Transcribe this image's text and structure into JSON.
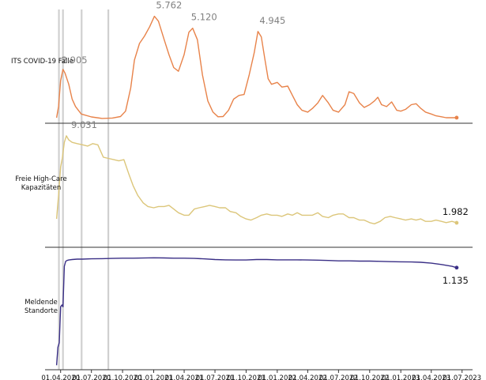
{
  "chart_data": [
    {
      "type": "line",
      "ylabel": "ITS COVID-19 Fälle",
      "color": "#e8834a",
      "series": [
        {
          "x": [
            "2020-03-20",
            "2020-03-26",
            "2020-04-01",
            "2020-04-08",
            "2020-04-14",
            "2020-04-25",
            "2020-05-05",
            "2020-05-15",
            "2020-06-01",
            "2020-07-01",
            "2020-08-01",
            "2020-09-01",
            "2020-09-25",
            "2020-10-10",
            "2020-10-25",
            "2020-11-05",
            "2020-11-20",
            "2020-12-05",
            "2020-12-20",
            "2021-01-03",
            "2021-01-15",
            "2021-02-01",
            "2021-02-15",
            "2021-03-01",
            "2021-03-15",
            "2021-04-01",
            "2021-04-15",
            "2021-04-26",
            "2021-05-10",
            "2021-05-25",
            "2021-06-10",
            "2021-06-25",
            "2021-07-10",
            "2021-07-25",
            "2021-08-10",
            "2021-08-25",
            "2021-09-10",
            "2021-09-25",
            "2021-10-10",
            "2021-10-25",
            "2021-11-05",
            "2021-11-15",
            "2021-11-25",
            "2021-12-05",
            "2021-12-15",
            "2022-01-01",
            "2022-01-15",
            "2022-02-01",
            "2022-02-15",
            "2022-03-01",
            "2022-03-15",
            "2022-04-01",
            "2022-04-15",
            "2022-05-01",
            "2022-05-15",
            "2022-06-01",
            "2022-06-15",
            "2022-07-01",
            "2022-07-20",
            "2022-08-01",
            "2022-08-15",
            "2022-09-01",
            "2022-09-15",
            "2022-10-01",
            "2022-10-15",
            "2022-10-25",
            "2022-11-05",
            "2022-11-20",
            "2022-12-05",
            "2022-12-20",
            "2023-01-01",
            "2023-01-15",
            "2023-02-01",
            "2023-02-15",
            "2023-03-01",
            "2023-03-15",
            "2023-04-01",
            "2023-04-15",
            "2023-05-01",
            "2023-05-15",
            "2023-06-01",
            "2023-06-15"
          ],
          "y": [
            300,
            900,
            2300,
            2905,
            2700,
            2100,
            1300,
            900,
            500,
            340,
            260,
            280,
            360,
            650,
            1900,
            3400,
            4300,
            4700,
            5200,
            5762,
            5500,
            4500,
            3700,
            3000,
            2800,
            3700,
            4900,
            5120,
            4500,
            2600,
            1200,
            600,
            350,
            360,
            700,
            1300,
            1500,
            1550,
            2600,
            3800,
            4945,
            4650,
            3500,
            2400,
            2100,
            2200,
            1950,
            2000,
            1500,
            1000,
            700,
            600,
            800,
            1100,
            1500,
            1100,
            700,
            600,
            1000,
            1700,
            1600,
            1100,
            850,
            1000,
            1200,
            1400,
            1000,
            900,
            1150,
            700,
            650,
            750,
            1000,
            1050,
            800,
            600,
            500,
            400,
            350,
            300,
            300,
            300
          ]
        }
      ],
      "value_labels": [
        "2.905",
        "5.762",
        "5.120",
        "4.945"
      ],
      "label_indices": [
        3,
        19,
        27,
        40
      ],
      "ylim": [
        0,
        6300
      ]
    },
    {
      "type": "line",
      "ylabel": "Freie High-Care Kapazitäten",
      "color": "#dcc67a",
      "series": [
        {
          "x": [
            "2020-03-20",
            "2020-03-26",
            "2020-04-01",
            "2020-04-06",
            "2020-04-12",
            "2020-04-18",
            "2020-04-25",
            "2020-05-05",
            "2020-05-20",
            "2020-06-05",
            "2020-06-20",
            "2020-07-05",
            "2020-07-20",
            "2020-08-05",
            "2020-08-20",
            "2020-09-05",
            "2020-09-20",
            "2020-10-05",
            "2020-10-20",
            "2020-11-01",
            "2020-11-15",
            "2020-12-01",
            "2020-12-15",
            "2021-01-01",
            "2021-01-15",
            "2021-02-01",
            "2021-02-15",
            "2021-03-01",
            "2021-03-15",
            "2021-04-01",
            "2021-04-15",
            "2021-05-01",
            "2021-05-15",
            "2021-06-01",
            "2021-06-15",
            "2021-07-01",
            "2021-07-15",
            "2021-08-01",
            "2021-08-15",
            "2021-09-01",
            "2021-09-15",
            "2021-10-01",
            "2021-10-15",
            "2021-11-01",
            "2021-11-15",
            "2021-12-01",
            "2021-12-15",
            "2022-01-01",
            "2022-01-15",
            "2022-02-01",
            "2022-02-15",
            "2022-03-01",
            "2022-03-15",
            "2022-04-01",
            "2022-04-15",
            "2022-05-01",
            "2022-05-15",
            "2022-06-01",
            "2022-06-15",
            "2022-07-01",
            "2022-07-15",
            "2022-08-01",
            "2022-08-15",
            "2022-09-01",
            "2022-09-15",
            "2022-10-01",
            "2022-10-15",
            "2022-11-01",
            "2022-11-15",
            "2022-12-01",
            "2022-12-15",
            "2023-01-01",
            "2023-01-15",
            "2023-02-01",
            "2023-02-15",
            "2023-03-01",
            "2023-03-15",
            "2023-04-01",
            "2023-04-15",
            "2023-05-01",
            "2023-05-15",
            "2023-06-01",
            "2023-06-15"
          ],
          "y": [
            2300,
            4200,
            6500,
            7200,
            8500,
            9031,
            8700,
            8500,
            8400,
            8300,
            8200,
            8400,
            8300,
            7300,
            7200,
            7100,
            7000,
            7100,
            5900,
            5000,
            4200,
            3600,
            3300,
            3200,
            3300,
            3300,
            3400,
            3100,
            2800,
            2600,
            2600,
            3100,
            3200,
            3300,
            3400,
            3300,
            3200,
            3200,
            2900,
            2800,
            2500,
            2300,
            2200,
            2400,
            2600,
            2700,
            2600,
            2600,
            2500,
            2700,
            2600,
            2800,
            2600,
            2600,
            2600,
            2800,
            2500,
            2400,
            2600,
            2700,
            2700,
            2400,
            2400,
            2200,
            2200,
            2000,
            1900,
            2100,
            2400,
            2500,
            2400,
            2300,
            2200,
            2300,
            2200,
            2300,
            2100,
            2100,
            2200,
            2100,
            2000,
            2100,
            1982
          ]
        }
      ],
      "value_labels": [
        "9.031",
        "1.982"
      ],
      "label_indices": [
        5,
        82
      ],
      "ylim": [
        0,
        9600
      ]
    },
    {
      "type": "line",
      "ylabel": "Meldende Standorte",
      "color": "#3a2f86",
      "series": [
        {
          "x": [
            "2020-03-20",
            "2020-03-24",
            "2020-03-28",
            "2020-04-01",
            "2020-04-05",
            "2020-04-08",
            "2020-04-12",
            "2020-04-16",
            "2020-04-20",
            "2020-04-25",
            "2020-05-05",
            "2020-05-20",
            "2020-06-05",
            "2020-07-01",
            "2020-08-01",
            "2020-09-01",
            "2020-10-01",
            "2020-11-01",
            "2020-12-01",
            "2021-01-01",
            "2021-02-01",
            "2021-03-01",
            "2021-04-01",
            "2021-05-01",
            "2021-06-01",
            "2021-07-01",
            "2021-08-01",
            "2021-09-01",
            "2021-10-01",
            "2021-11-01",
            "2021-12-01",
            "2022-01-01",
            "2022-02-01",
            "2022-03-01",
            "2022-04-01",
            "2022-05-01",
            "2022-06-01",
            "2022-07-01",
            "2022-08-01",
            "2022-09-01",
            "2022-10-01",
            "2022-11-01",
            "2022-12-01",
            "2023-01-01",
            "2023-02-01",
            "2023-03-01",
            "2023-04-01",
            "2023-05-01",
            "2023-06-01",
            "2023-06-15"
          ],
          "y": [
            50,
            250,
            300,
            700,
            720,
            700,
            1150,
            1205,
            1215,
            1220,
            1225,
            1230,
            1230,
            1233,
            1235,
            1238,
            1240,
            1240,
            1242,
            1245,
            1243,
            1240,
            1240,
            1238,
            1232,
            1225,
            1222,
            1220,
            1220,
            1225,
            1225,
            1222,
            1222,
            1222,
            1220,
            1218,
            1215,
            1210,
            1210,
            1208,
            1208,
            1205,
            1202,
            1200,
            1198,
            1195,
            1185,
            1170,
            1150,
            1135
          ]
        }
      ],
      "value_labels": [
        "1.135"
      ],
      "label_indices": [
        49
      ],
      "ylim": [
        0,
        1300
      ]
    }
  ],
  "xaxis": {
    "ticks": [
      "2020-04-01",
      "2020-07-01",
      "2020-10-01",
      "2021-01-01",
      "2021-04-01",
      "2021-07-01",
      "2021-10-01",
      "2022-01-01",
      "2022-04-01",
      "2022-07-01",
      "2022-10-01",
      "2023-01-01",
      "2023-04-01",
      "2023-07-01"
    ],
    "tick_labels": [
      "01.04.2020",
      "01.07.2020",
      "01.10.2020",
      "01.01.2021",
      "01.04.2021",
      "01.07.2021",
      "01.10.2021",
      "01.01.2022",
      "01.04.2022",
      "01.07.2022",
      "01.10.2022",
      "01.01.2023",
      "01.04.2023",
      "01.07.2023"
    ],
    "range": [
      "2020-02-15",
      "2023-08-01"
    ]
  },
  "reference_lines": [
    "2020-03-27",
    "2020-04-08",
    "2020-06-02",
    "2020-08-20"
  ],
  "reference_color": "#d0d0d0"
}
